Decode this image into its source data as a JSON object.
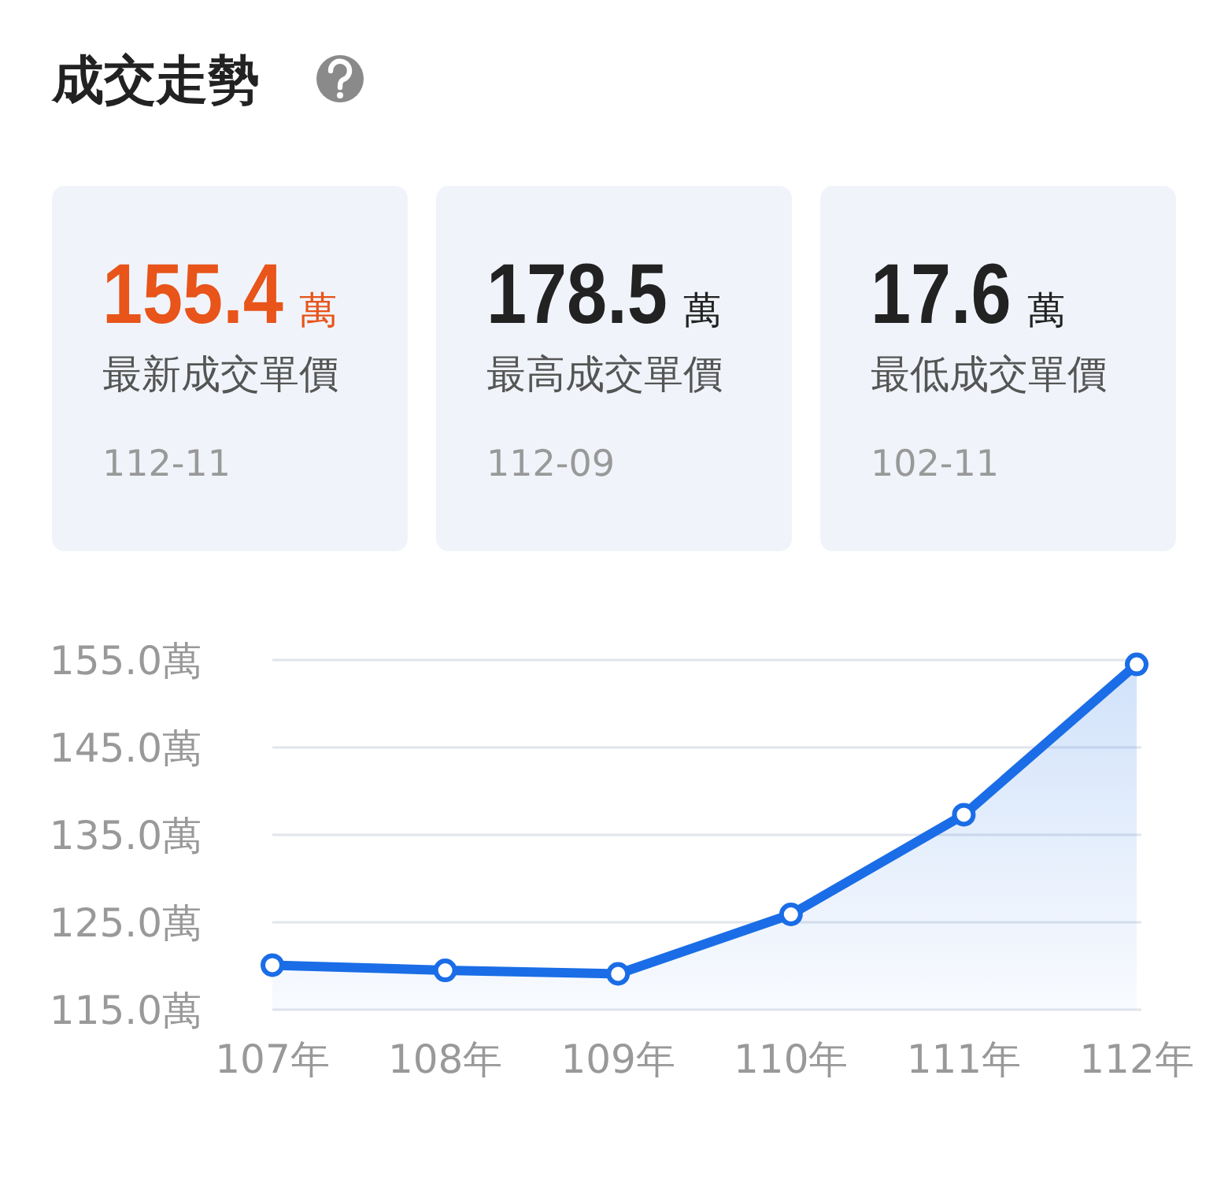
{
  "chart_data": [
    {
      "type": "other",
      "title": "成交走勢",
      "annotations": [
        "155.4",
        "萬",
        "最新成交單價",
        "112-11",
        "178.5",
        "萬",
        "最高成交單價",
        "112-09",
        "17.6",
        "萬",
        "最低成交單價",
        "102-11"
      ],
      "colors": [
        "#e8541a",
        "#222222",
        "#222222"
      ]
    },
    {
      "type": "area",
      "categories": [
        "107年",
        "108年",
        "109年",
        "110年",
        "111年",
        "112年"
      ],
      "series": [
        {
          "color": "#1a6de6",
          "values": [
            120.1,
            119.5,
            119.1,
            125.9,
            137.3,
            154.5
          ]
        }
      ],
      "ylim": [
        115,
        155
      ],
      "yticks": [
        {
          "value": 115,
          "label": "115.0萬"
        },
        {
          "value": 125,
          "label": "125.0萬"
        },
        {
          "value": 135,
          "label": "135.0萬"
        },
        {
          "value": 145,
          "label": "145.0萬"
        },
        {
          "value": 155,
          "label": "155.0萬"
        }
      ],
      "grid": "y",
      "marker": "circle"
    }
  ]
}
